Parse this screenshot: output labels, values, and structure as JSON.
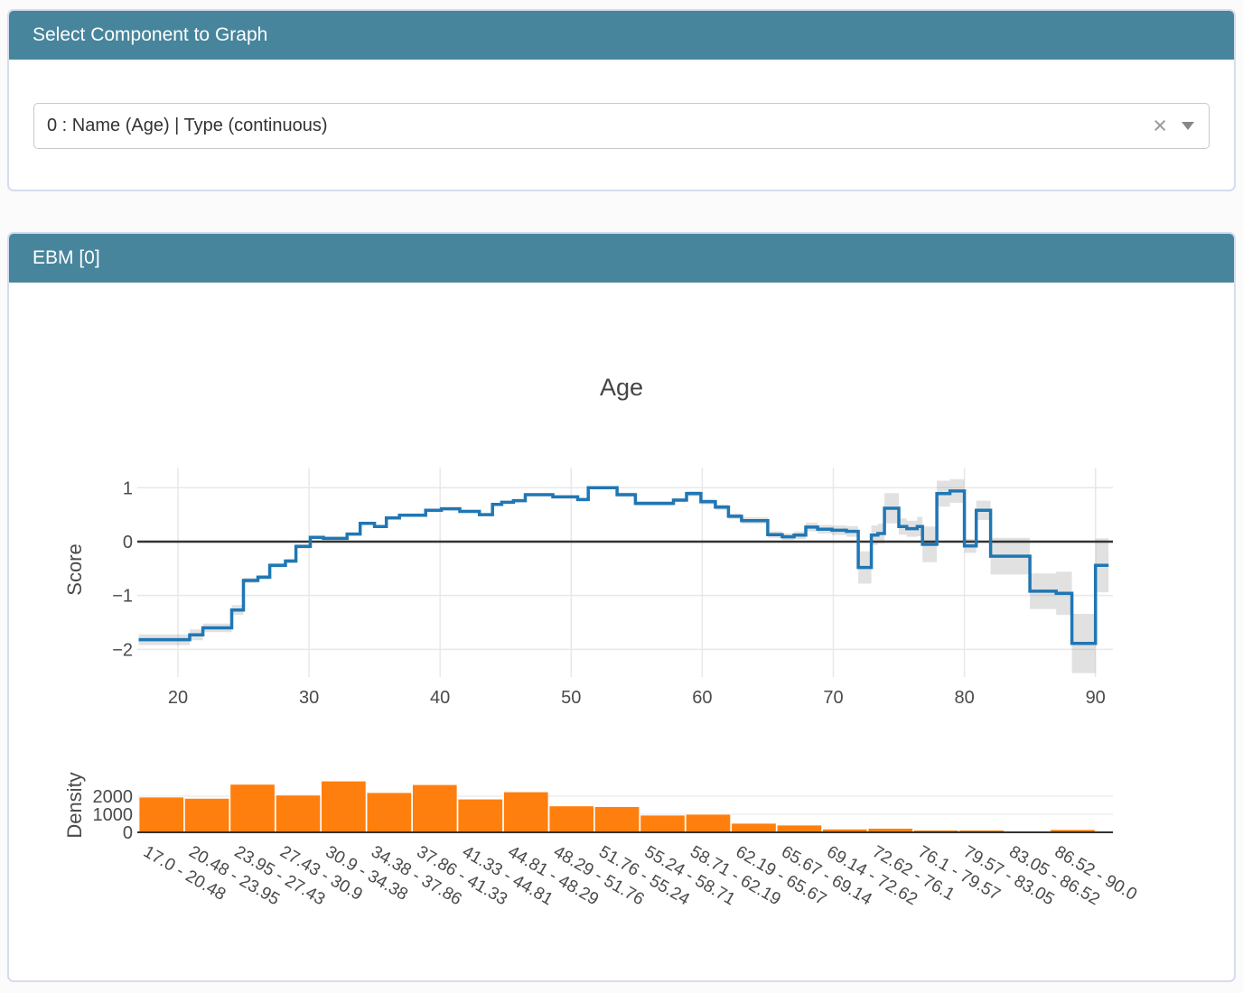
{
  "selector": {
    "title": "Select Component to Graph",
    "dropdown": {
      "value": "0 : Name (Age) | Type (continuous)",
      "clear_icon": "×",
      "caret_icon": "chevron-down"
    }
  },
  "graph_panel": {
    "title": "EBM [0]"
  },
  "colors": {
    "accent_teal": "#47859c",
    "panel_border": "#d6dcee",
    "line_blue": "#1f77b4",
    "bar_orange": "#ff7f0e",
    "band_gray": "rgba(120,120,120,0.22)",
    "zero_line": "#333333",
    "grid": "#e8e8e8"
  },
  "chart_data": {
    "type": "line",
    "title": "Age",
    "main": {
      "type": "step-line",
      "ylabel": "Score",
      "xlim": [
        16.9,
        91.33
      ],
      "ylim": [
        -2.513,
        1.373
      ],
      "xticks": [
        20,
        30,
        40,
        50,
        60,
        70,
        80,
        90
      ],
      "yticks": [
        1,
        0,
        -1,
        -2
      ],
      "grid": true,
      "zeroline": true,
      "line_color": "#1f77b4",
      "band_color": "rgba(120,120,120,0.22)",
      "x_end": 91.0,
      "steps_note": "each entry = [x_start, score, error_halfwidth]; value holds until next x_start",
      "steps": [
        [
          17.0,
          -1.82,
          0.1
        ],
        [
          20.9,
          -1.73,
          0.1
        ],
        [
          21.9,
          -1.6,
          0.08
        ],
        [
          24.1,
          -1.27,
          0.09
        ],
        [
          25.0,
          -0.72,
          0.05
        ],
        [
          26.1,
          -0.66,
          0.04
        ],
        [
          27.0,
          -0.44,
          0.04
        ],
        [
          28.2,
          -0.36,
          0.04
        ],
        [
          29.0,
          -0.09,
          0.04
        ],
        [
          30.1,
          0.08,
          0.03
        ],
        [
          31.1,
          0.06,
          0.03
        ],
        [
          32.9,
          0.14,
          0.03
        ],
        [
          33.9,
          0.34,
          0.03
        ],
        [
          35.0,
          0.28,
          0.03
        ],
        [
          35.9,
          0.44,
          0.03
        ],
        [
          36.9,
          0.49,
          0.03
        ],
        [
          38.9,
          0.58,
          0.03
        ],
        [
          40.1,
          0.61,
          0.03
        ],
        [
          41.5,
          0.56,
          0.03
        ],
        [
          43.0,
          0.5,
          0.03
        ],
        [
          44.0,
          0.69,
          0.03
        ],
        [
          44.7,
          0.73,
          0.03
        ],
        [
          45.6,
          0.76,
          0.03
        ],
        [
          46.5,
          0.87,
          0.03
        ],
        [
          48.6,
          0.83,
          0.03
        ],
        [
          50.5,
          0.78,
          0.03
        ],
        [
          51.3,
          1.0,
          0.03
        ],
        [
          53.5,
          0.87,
          0.04
        ],
        [
          54.9,
          0.71,
          0.04
        ],
        [
          57.8,
          0.77,
          0.04
        ],
        [
          58.8,
          0.89,
          0.05
        ],
        [
          59.9,
          0.74,
          0.05
        ],
        [
          61.0,
          0.64,
          0.05
        ],
        [
          62.0,
          0.47,
          0.05
        ],
        [
          63.0,
          0.39,
          0.06
        ],
        [
          65.0,
          0.13,
          0.06
        ],
        [
          66.1,
          0.09,
          0.06
        ],
        [
          67.0,
          0.12,
          0.07
        ],
        [
          67.9,
          0.27,
          0.08
        ],
        [
          68.8,
          0.23,
          0.08
        ],
        [
          69.9,
          0.21,
          0.09
        ],
        [
          71.0,
          0.19,
          0.1
        ],
        [
          71.9,
          -0.48,
          0.3
        ],
        [
          72.9,
          0.12,
          0.18
        ],
        [
          73.4,
          0.15,
          0.18
        ],
        [
          73.9,
          0.62,
          0.28
        ],
        [
          75.0,
          0.28,
          0.15
        ],
        [
          75.6,
          0.24,
          0.15
        ],
        [
          76.4,
          0.28,
          0.18
        ],
        [
          76.8,
          -0.05,
          0.33
        ],
        [
          77.9,
          0.89,
          0.24
        ],
        [
          78.9,
          0.94,
          0.22
        ],
        [
          80.0,
          -0.08,
          0.13
        ],
        [
          80.9,
          0.58,
          0.18
        ],
        [
          82.0,
          -0.27,
          0.34
        ],
        [
          85.0,
          -0.92,
          0.33
        ],
        [
          87.0,
          -0.96,
          0.4
        ],
        [
          88.2,
          -1.89,
          0.55
        ],
        [
          90.0,
          -0.44,
          0.5
        ]
      ]
    },
    "density": {
      "type": "bar",
      "ylabel": "Density",
      "ylim": [
        0,
        3150
      ],
      "yticks": [
        0,
        1000,
        2000
      ],
      "bar_color": "#ff7f0e",
      "bin_edges": [
        17.0,
        20.48,
        23.95,
        27.43,
        30.9,
        34.38,
        37.86,
        41.33,
        44.81,
        48.29,
        51.76,
        55.24,
        58.71,
        62.19,
        65.67,
        69.14,
        72.62,
        76.1,
        79.57,
        83.05,
        86.52,
        90.0
      ],
      "categories": [
        "17.0 - 20.48",
        "20.48 - 23.95",
        "23.95 - 27.43",
        "27.43 - 30.9",
        "30.9 - 34.38",
        "34.38 - 37.86",
        "37.86 - 41.33",
        "41.33 - 44.81",
        "44.81 - 48.29",
        "48.29 - 51.76",
        "51.76 - 55.24",
        "55.24 - 58.71",
        "58.71 - 62.19",
        "62.19 - 65.67",
        "65.67 - 69.14",
        "69.14 - 72.62",
        "72.62 - 76.1",
        "76.1 - 79.57",
        "79.57 - 83.05",
        "83.05 - 86.52",
        "86.52 - 90.0"
      ],
      "values": [
        1950,
        1880,
        2660,
        2060,
        2840,
        2200,
        2640,
        1840,
        2240,
        1460,
        1420,
        950,
        1000,
        500,
        400,
        180,
        220,
        120,
        120,
        50,
        150
      ]
    }
  }
}
